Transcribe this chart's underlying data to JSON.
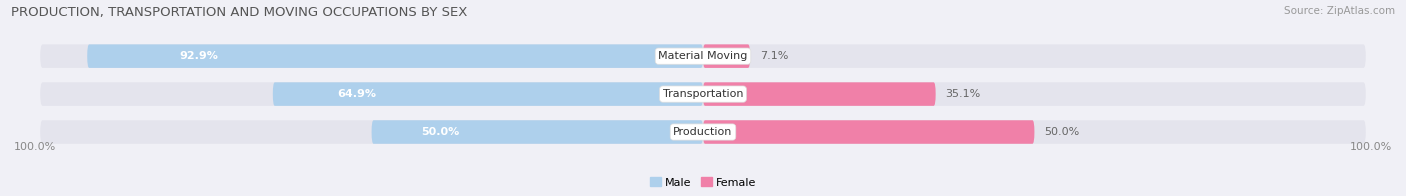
{
  "title": "PRODUCTION, TRANSPORTATION AND MOVING OCCUPATIONS BY SEX",
  "source": "Source: ZipAtlas.com",
  "categories": [
    "Material Moving",
    "Transportation",
    "Production"
  ],
  "male_values": [
    92.9,
    64.9,
    50.0
  ],
  "female_values": [
    7.1,
    35.1,
    50.0
  ],
  "male_color": "#7eb8e0",
  "female_color": "#f080a8",
  "male_color_light": "#aed0ec",
  "female_color_light": "#f4b8ce",
  "bar_bg_color": "#e4e4ed",
  "title_fontsize": 9.5,
  "source_fontsize": 7.5,
  "axis_label_fontsize": 8,
  "bar_label_fontsize": 8,
  "category_fontsize": 8,
  "bar_height": 0.62,
  "fig_width": 14.06,
  "fig_height": 1.96,
  "x_left_label": "100.0%",
  "x_right_label": "100.0%"
}
